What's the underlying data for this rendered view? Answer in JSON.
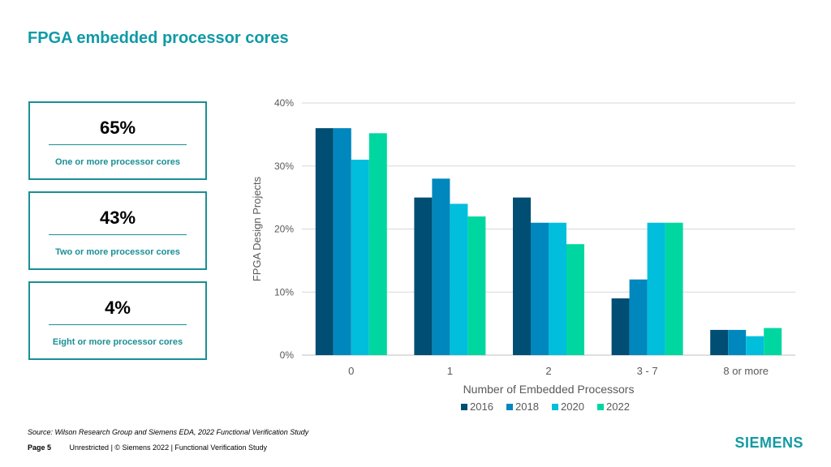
{
  "title": "FPGA embedded processor cores",
  "cards": [
    {
      "value": "65%",
      "label": "One or more processor cores"
    },
    {
      "value": "43%",
      "label": "Two or more processor cores"
    },
    {
      "value": "4%",
      "label": "Eight or more processor cores"
    }
  ],
  "source": "Source:  Wilson Research Group and Siemens EDA, 2022 Functional Verification Study",
  "footer": {
    "page": "Page 5",
    "text": "Unrestricted | © Siemens 2022 |  Functional Verification Study"
  },
  "logo": "SIEMENS",
  "colors": {
    "2016": "#004e73",
    "2018": "#0087be",
    "2020": "#00bedc",
    "2022": "#00d7a0",
    "accent": "#0f9aa6"
  },
  "chart_data": {
    "type": "bar",
    "categories": [
      "0",
      "1",
      "2",
      "3 - 7",
      "8 or more"
    ],
    "series": [
      {
        "name": "2016",
        "values": [
          36,
          25,
          25,
          9,
          4
        ]
      },
      {
        "name": "2018",
        "values": [
          36,
          28,
          21,
          12,
          4
        ]
      },
      {
        "name": "2020",
        "values": [
          31,
          24,
          21,
          21,
          3
        ]
      },
      {
        "name": "2022",
        "values": [
          35.2,
          22,
          17.6,
          21,
          4.3
        ]
      }
    ],
    "title": "",
    "xlabel": "Number of Embedded Processors",
    "ylabel": "FPGA Design Projects",
    "ylim": [
      0,
      40
    ],
    "yticks": [
      "0%",
      "10%",
      "20%",
      "30%",
      "40%"
    ],
    "grid": true,
    "legend": "bottom"
  }
}
